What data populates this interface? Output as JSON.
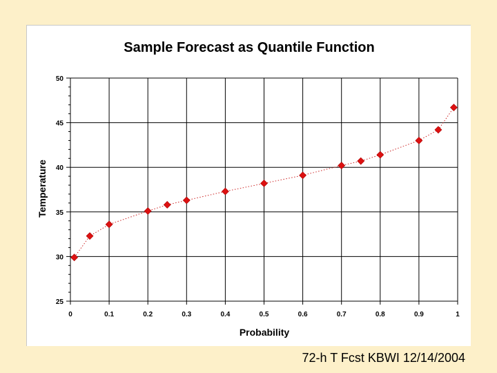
{
  "caption": "72-h T Fcst KBWI 12/14/2004",
  "chart_data": {
    "type": "scatter",
    "title": "Sample Forecast as Quantile Function",
    "xlabel": "Probability",
    "ylabel": "Temperature",
    "xlim": [
      0,
      1
    ],
    "ylim": [
      25,
      50
    ],
    "xticks": [
      0,
      0.1,
      0.2,
      0.3,
      0.4,
      0.5,
      0.6,
      0.7,
      0.8,
      0.9,
      1
    ],
    "xtick_labels": [
      "0",
      "0.1",
      "0.2",
      "0.3",
      "0.4",
      "0.5",
      "0.6",
      "0.7",
      "0.8",
      "0.9",
      "1"
    ],
    "yticks": [
      25,
      30,
      35,
      40,
      45,
      50
    ],
    "ytick_labels": [
      "25",
      "30",
      "35",
      "40",
      "45",
      "50"
    ],
    "grid": true,
    "marker_color": "#dd1111",
    "line_color": "#cc2222",
    "series": [
      {
        "x": [
          0.01,
          0.05,
          0.1,
          0.2,
          0.25,
          0.3,
          0.4,
          0.5,
          0.6,
          0.7,
          0.75,
          0.8,
          0.9,
          0.95,
          0.99
        ],
        "y": [
          29.9,
          32.3,
          33.6,
          35.1,
          35.8,
          36.3,
          37.3,
          38.2,
          39.1,
          40.2,
          40.7,
          41.4,
          43.0,
          44.2,
          46.7
        ]
      }
    ]
  }
}
